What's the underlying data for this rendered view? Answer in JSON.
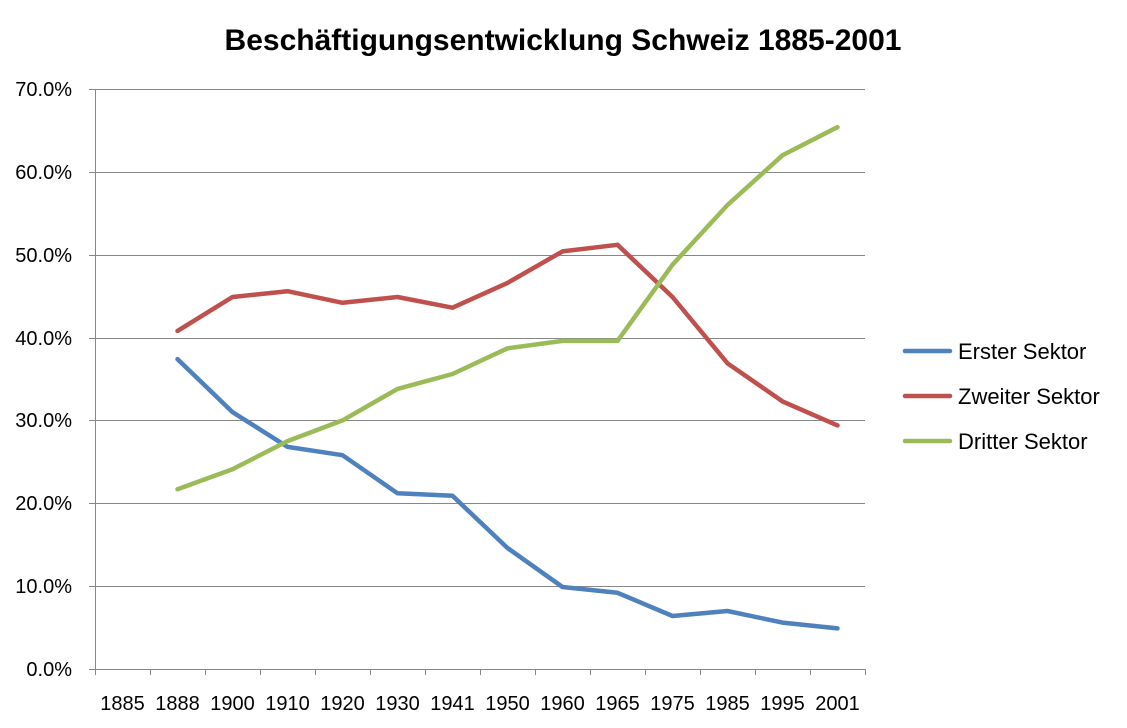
{
  "chart_data": {
    "type": "line",
    "title": "Beschäftigungsentwicklung Schweiz 1885-2001",
    "categories": [
      "1885",
      "1888",
      "1900",
      "1910",
      "1920",
      "1930",
      "1941",
      "1950",
      "1960",
      "1965",
      "1975",
      "1985",
      "1995",
      "2001"
    ],
    "ylim": [
      0,
      70
    ],
    "yticks": [
      0,
      10,
      20,
      30,
      40,
      50,
      60,
      70
    ],
    "ytick_labels": [
      "0.0%",
      "10.0%",
      "20.0%",
      "30.0%",
      "40.0%",
      "50.0%",
      "60.0%",
      "70.0%"
    ],
    "grid": "horizontal",
    "legend": "right",
    "series": [
      {
        "name": "Erster Sektor",
        "color": "#4F81BD",
        "values": [
          null,
          37.4,
          31.0,
          26.8,
          25.8,
          21.2,
          20.9,
          14.6,
          9.9,
          9.2,
          6.4,
          7.0,
          5.6,
          4.9
        ]
      },
      {
        "name": "Zweiter Sektor",
        "color": "#C0504D",
        "values": [
          null,
          40.8,
          44.9,
          45.6,
          44.2,
          44.9,
          43.6,
          46.6,
          50.4,
          51.2,
          44.9,
          36.9,
          32.3,
          29.4
        ]
      },
      {
        "name": "Dritter Sektor",
        "color": "#9BBB59",
        "values": [
          null,
          21.7,
          24.1,
          27.5,
          30.0,
          33.8,
          35.6,
          38.7,
          39.6,
          39.6,
          48.8,
          56.0,
          62.0,
          65.4
        ]
      }
    ]
  }
}
